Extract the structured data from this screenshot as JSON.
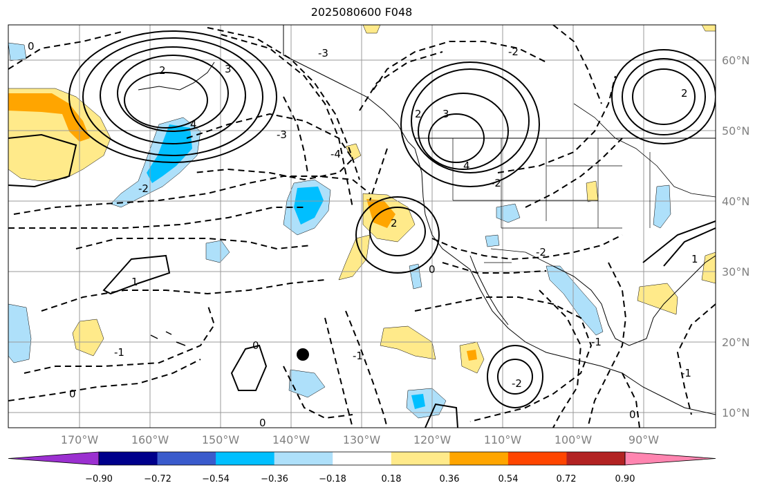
{
  "title": "2025080600 F048",
  "lat_labels": [
    "60°N",
    "50°N",
    "40°N",
    "30°N",
    "20°N",
    "10°N"
  ],
  "lon_labels": [
    "170°W",
    "160°W",
    "150°W",
    "140°W",
    "130°W",
    "120°W",
    "110°W",
    "100°W",
    "90°W"
  ],
  "colorbar": {
    "ticks": [
      "−0.90",
      "−0.72",
      "−0.54",
      "−0.36",
      "−0.18",
      "0.18",
      "0.36",
      "0.54",
      "0.72",
      "0.90"
    ],
    "colors": [
      "#9b30d0",
      "#00008b",
      "#3a5bcc",
      "#00bfff",
      "#aee0fa",
      "#ffffff",
      "#ffea8a",
      "#ffa500",
      "#ff4500",
      "#b22222",
      "#ff85b0"
    ]
  },
  "contour_labels": [
    "0",
    "-2",
    "-3",
    "2",
    "3",
    "-4",
    "4",
    "-1",
    "1",
    "-2",
    "2",
    "0",
    "-1",
    "0",
    "-1",
    "0",
    "-2",
    "4",
    "2",
    "-2",
    "0",
    "3",
    "2",
    "-2",
    "-3",
    "0",
    "-1",
    "1"
  ],
  "marker": "black-dot"
}
